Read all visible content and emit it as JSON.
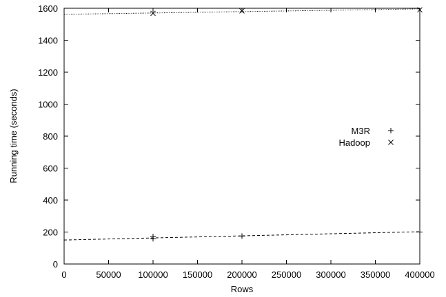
{
  "chart_data": {
    "type": "scatter",
    "xlabel": "Rows",
    "ylabel": "Running time (seconds)",
    "xlim": [
      0,
      400000
    ],
    "ylim": [
      0,
      1600
    ],
    "xticks": [
      0,
      50000,
      100000,
      150000,
      200000,
      250000,
      300000,
      350000,
      400000
    ],
    "yticks": [
      0,
      200,
      400,
      600,
      800,
      1000,
      1200,
      1400,
      1600
    ],
    "grid": false,
    "legend_position": "right-middle",
    "series": [
      {
        "name": "M3R",
        "marker": "plus",
        "points": [
          {
            "x": 100000,
            "y": 158
          },
          {
            "x": 100000,
            "y": 172
          },
          {
            "x": 200000,
            "y": 175
          },
          {
            "x": 400000,
            "y": 200
          }
        ],
        "fit_line": {
          "style": "dashed",
          "x": [
            0,
            400000
          ],
          "y": [
            150,
            202
          ]
        }
      },
      {
        "name": "Hadoop",
        "marker": "cross",
        "points": [
          {
            "x": 100000,
            "y": 1568
          },
          {
            "x": 200000,
            "y": 1583
          },
          {
            "x": 400000,
            "y": 1590
          }
        ],
        "fit_line": {
          "style": "dotted",
          "x": [
            0,
            400000
          ],
          "y": [
            1562,
            1596
          ]
        }
      }
    ]
  }
}
